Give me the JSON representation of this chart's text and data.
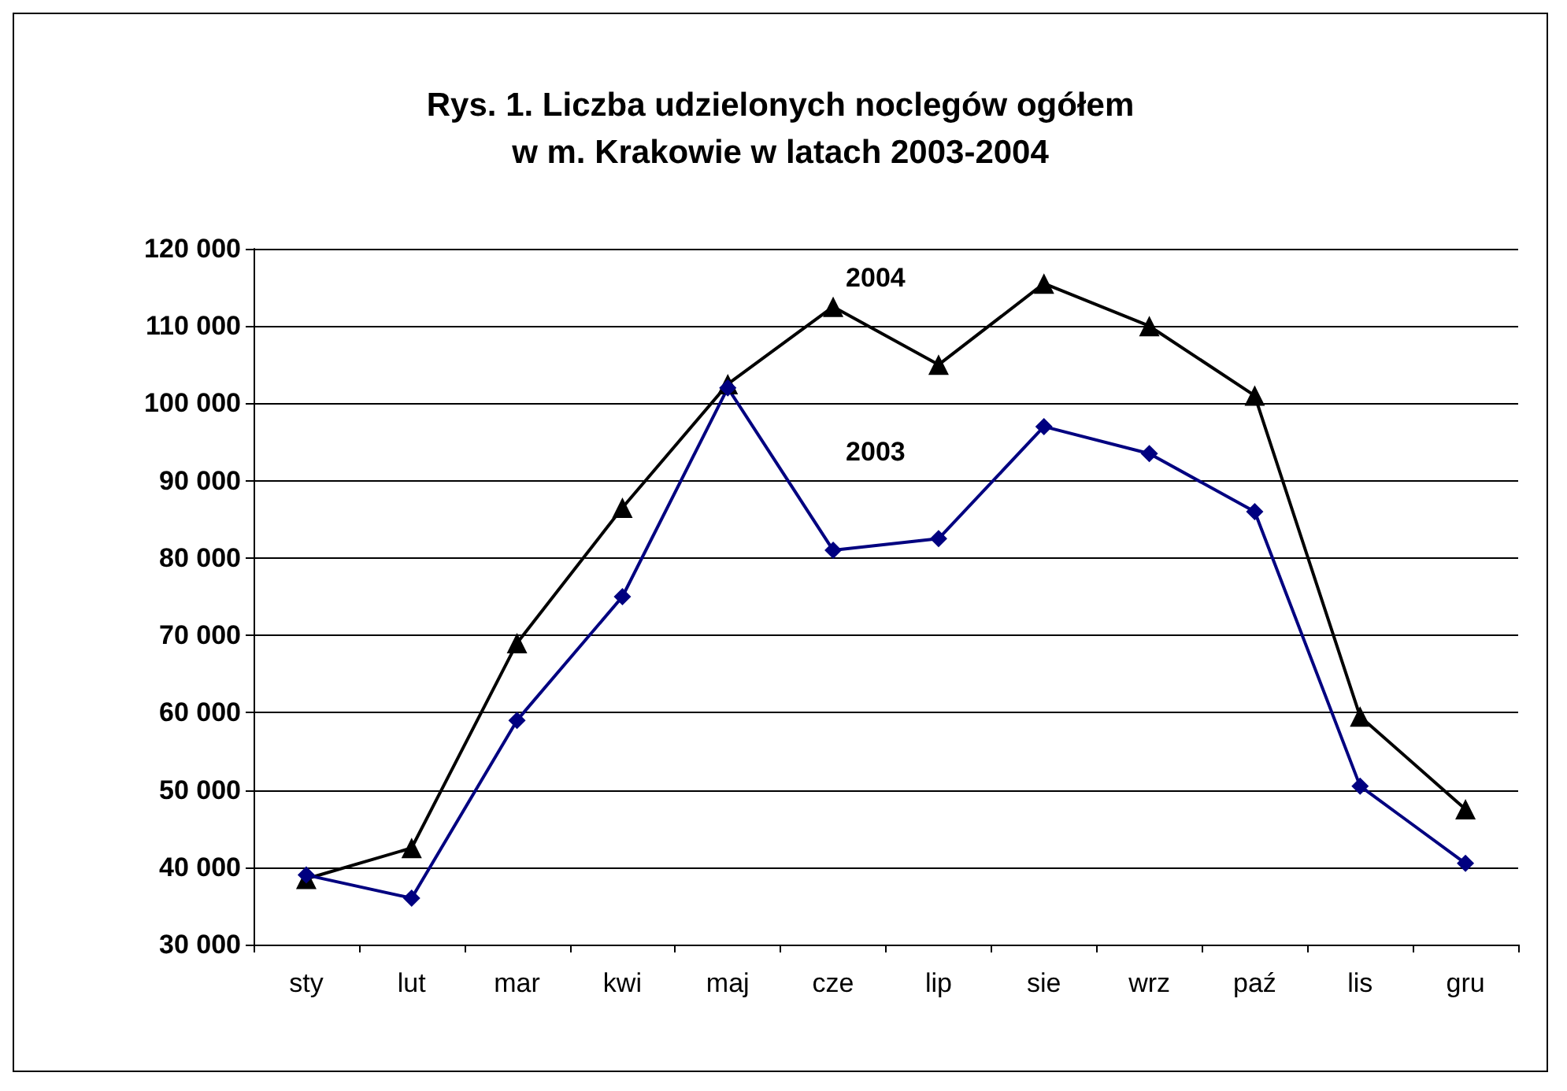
{
  "chart_data": {
    "type": "line",
    "title": "Rys. 1. Liczba udzielonych noclegów ogółem\nw m. Krakowie w latach 2003-2004",
    "categories": [
      "sty",
      "lut",
      "mar",
      "kwi",
      "maj",
      "cze",
      "lip",
      "sie",
      "wrz",
      "paź",
      "lis",
      "gru"
    ],
    "series": [
      {
        "name": "2004",
        "color": "#000000",
        "marker": "triangle",
        "values": [
          38500,
          42500,
          69000,
          86500,
          102500,
          112500,
          105000,
          115500,
          110000,
          101000,
          59500,
          47500
        ]
      },
      {
        "name": "2003",
        "color": "#000080",
        "marker": "diamond",
        "values": [
          39000,
          36000,
          59000,
          75000,
          102000,
          81000,
          82500,
          97000,
          93500,
          86000,
          50500,
          40500
        ]
      }
    ],
    "ylim": [
      30000,
      120000
    ],
    "yticks": [
      30000,
      40000,
      50000,
      60000,
      70000,
      80000,
      90000,
      100000,
      110000,
      120000
    ],
    "grid": "y"
  }
}
